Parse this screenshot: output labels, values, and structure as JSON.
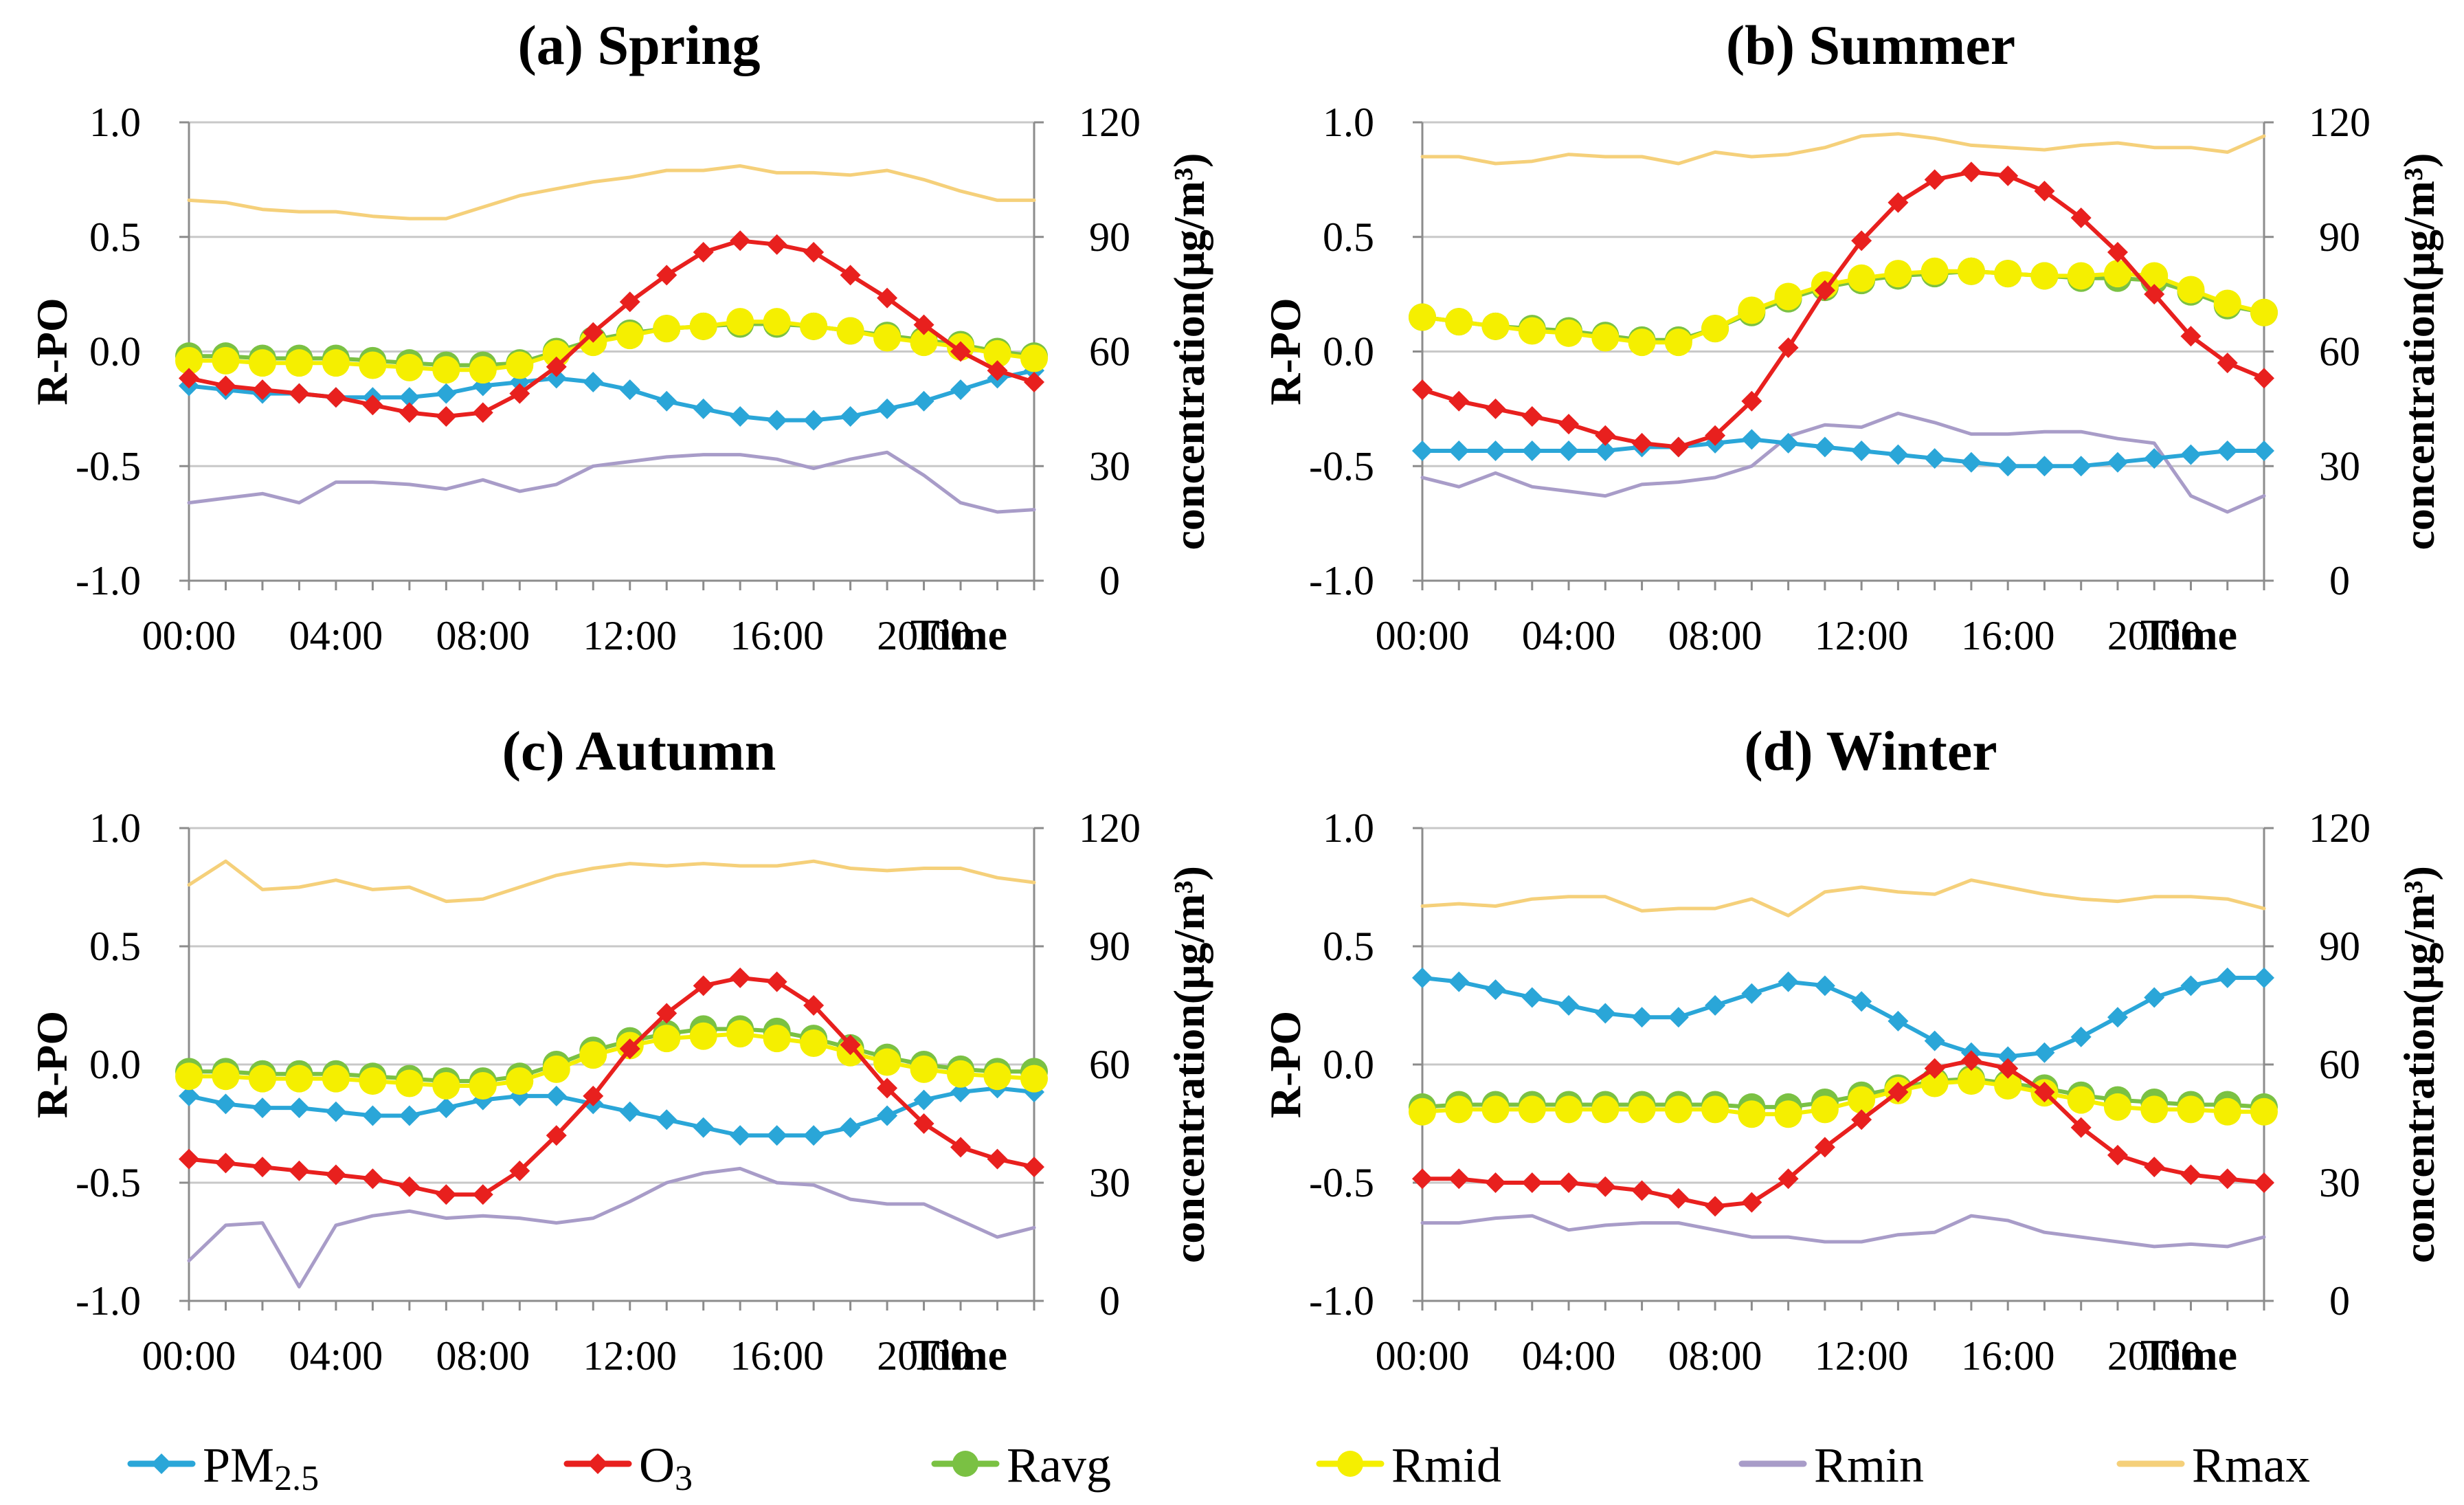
{
  "chart_data": [
    {
      "type": "line",
      "title": "(a) Spring",
      "xlabel": "Time",
      "ylabel": "R-PO",
      "y2label": "concentration(μg/m³)",
      "x_ticks": [
        "00:00",
        "04:00",
        "08:00",
        "12:00",
        "16:00",
        "20:00"
      ],
      "y_ticks": [
        "1.0",
        "0.5",
        "0.0",
        "-0.5",
        "-1.0"
      ],
      "y2_ticks": [
        "120",
        "90",
        "60",
        "30",
        "0"
      ],
      "ylim": [
        -1.0,
        1.0
      ],
      "y2lim": [
        0,
        120
      ],
      "grid": true,
      "x": [
        0,
        1,
        2,
        3,
        4,
        5,
        6,
        7,
        8,
        9,
        10,
        11,
        12,
        13,
        14,
        15,
        16,
        17,
        18,
        19,
        20,
        21,
        22,
        23
      ],
      "series": [
        {
          "name": "PM2.5",
          "axis": "right",
          "color": "#2aa6d8",
          "marker": "diamond",
          "values": [
            51,
            50,
            49,
            49,
            48,
            48,
            48,
            49,
            51,
            52,
            53,
            52,
            50,
            47,
            45,
            43,
            42,
            42,
            43,
            45,
            47,
            50,
            53,
            55
          ]
        },
        {
          "name": "O3",
          "axis": "right",
          "color": "#e8201e",
          "marker": "diamond",
          "values": [
            53,
            51,
            50,
            49,
            48,
            46,
            44,
            43,
            44,
            49,
            56,
            65,
            73,
            80,
            86,
            89,
            88,
            86,
            80,
            74,
            67,
            60,
            55,
            52
          ]
        },
        {
          "name": "Ravg",
          "axis": "left",
          "color": "#7ac143",
          "marker": "circle",
          "values": [
            -0.02,
            -0.02,
            -0.03,
            -0.03,
            -0.03,
            -0.04,
            -0.05,
            -0.06,
            -0.06,
            -0.05,
            0.0,
            0.05,
            0.08,
            0.1,
            0.11,
            0.12,
            0.12,
            0.11,
            0.09,
            0.07,
            0.05,
            0.03,
            0.0,
            -0.02
          ]
        },
        {
          "name": "Rmid",
          "axis": "left",
          "color": "#f5ef00",
          "marker": "circle",
          "values": [
            -0.04,
            -0.04,
            -0.05,
            -0.05,
            -0.05,
            -0.06,
            -0.07,
            -0.08,
            -0.08,
            -0.06,
            -0.01,
            0.04,
            0.07,
            0.1,
            0.11,
            0.13,
            0.13,
            0.11,
            0.09,
            0.06,
            0.04,
            0.02,
            -0.01,
            -0.03
          ]
        },
        {
          "name": "Rmin",
          "axis": "left",
          "color": "#a89cc8",
          "marker": "none",
          "values": [
            -0.66,
            -0.64,
            -0.62,
            -0.66,
            -0.57,
            -0.57,
            -0.58,
            -0.6,
            -0.56,
            -0.61,
            -0.58,
            -0.5,
            -0.48,
            -0.46,
            -0.45,
            -0.45,
            -0.47,
            -0.51,
            -0.47,
            -0.44,
            -0.54,
            -0.66,
            -0.7,
            -0.69
          ]
        },
        {
          "name": "Rmax",
          "axis": "left",
          "color": "#f5d07a",
          "marker": "none",
          "values": [
            0.66,
            0.65,
            0.62,
            0.61,
            0.61,
            0.59,
            0.58,
            0.58,
            0.63,
            0.68,
            0.71,
            0.74,
            0.76,
            0.79,
            0.79,
            0.81,
            0.78,
            0.78,
            0.77,
            0.79,
            0.75,
            0.7,
            0.66,
            0.66
          ]
        }
      ]
    },
    {
      "type": "line",
      "title": "(b) Summer",
      "xlabel": "Time",
      "ylabel": "R-PO",
      "y2label": "concentration(μg/m³)",
      "x_ticks": [
        "00:00",
        "04:00",
        "08:00",
        "12:00",
        "16:00",
        "20:00"
      ],
      "y_ticks": [
        "1.0",
        "0.5",
        "0.0",
        "-0.5",
        "-1.0"
      ],
      "y2_ticks": [
        "120",
        "90",
        "60",
        "30",
        "0"
      ],
      "ylim": [
        -1.0,
        1.0
      ],
      "y2lim": [
        0,
        120
      ],
      "grid": true,
      "x": [
        0,
        1,
        2,
        3,
        4,
        5,
        6,
        7,
        8,
        9,
        10,
        11,
        12,
        13,
        14,
        15,
        16,
        17,
        18,
        19,
        20,
        21,
        22,
        23
      ],
      "series": [
        {
          "name": "PM2.5",
          "axis": "right",
          "color": "#2aa6d8",
          "marker": "diamond",
          "values": [
            34,
            34,
            34,
            34,
            34,
            34,
            35,
            35,
            36,
            37,
            36,
            35,
            34,
            33,
            32,
            31,
            30,
            30,
            30,
            31,
            32,
            33,
            34,
            34
          ]
        },
        {
          "name": "O3",
          "axis": "right",
          "color": "#e8201e",
          "marker": "diamond",
          "values": [
            50,
            47,
            45,
            43,
            41,
            38,
            36,
            35,
            38,
            47,
            61,
            76,
            89,
            99,
            105,
            107,
            106,
            102,
            95,
            86,
            75,
            64,
            57,
            53
          ]
        },
        {
          "name": "Ravg",
          "axis": "left",
          "color": "#7ac143",
          "marker": "circle",
          "values": [
            0.15,
            0.13,
            0.11,
            0.1,
            0.09,
            0.07,
            0.05,
            0.05,
            0.1,
            0.17,
            0.23,
            0.28,
            0.31,
            0.33,
            0.34,
            0.35,
            0.34,
            0.33,
            0.32,
            0.32,
            0.31,
            0.26,
            0.2,
            0.17
          ]
        },
        {
          "name": "Rmid",
          "axis": "left",
          "color": "#f5ef00",
          "marker": "circle",
          "values": [
            0.15,
            0.13,
            0.11,
            0.09,
            0.08,
            0.06,
            0.04,
            0.04,
            0.1,
            0.18,
            0.24,
            0.29,
            0.32,
            0.34,
            0.35,
            0.35,
            0.34,
            0.33,
            0.33,
            0.34,
            0.33,
            0.27,
            0.21,
            0.17
          ]
        },
        {
          "name": "Rmin",
          "axis": "left",
          "color": "#a89cc8",
          "marker": "none",
          "values": [
            -0.55,
            -0.59,
            -0.53,
            -0.59,
            -0.61,
            -0.63,
            -0.58,
            -0.57,
            -0.55,
            -0.5,
            -0.37,
            -0.32,
            -0.33,
            -0.27,
            -0.31,
            -0.36,
            -0.36,
            -0.35,
            -0.35,
            -0.38,
            -0.4,
            -0.63,
            -0.7,
            -0.63
          ]
        },
        {
          "name": "Rmax",
          "axis": "left",
          "color": "#f5d07a",
          "marker": "none",
          "values": [
            0.85,
            0.85,
            0.82,
            0.83,
            0.86,
            0.85,
            0.85,
            0.82,
            0.87,
            0.85,
            0.86,
            0.89,
            0.94,
            0.95,
            0.93,
            0.9,
            0.89,
            0.88,
            0.9,
            0.91,
            0.89,
            0.89,
            0.87,
            0.94
          ]
        }
      ]
    },
    {
      "type": "line",
      "title": "(c) Autumn",
      "xlabel": "Time",
      "ylabel": "R-PO",
      "y2label": "concentration(μg/m³)",
      "x_ticks": [
        "00:00",
        "04:00",
        "08:00",
        "12:00",
        "16:00",
        "20:00"
      ],
      "y_ticks": [
        "1.0",
        "0.5",
        "0.0",
        "-0.5",
        "-1.0"
      ],
      "y2_ticks": [
        "120",
        "90",
        "60",
        "30",
        "0"
      ],
      "ylim": [
        -1.0,
        1.0
      ],
      "y2lim": [
        0,
        120
      ],
      "grid": true,
      "x": [
        0,
        1,
        2,
        3,
        4,
        5,
        6,
        7,
        8,
        9,
        10,
        11,
        12,
        13,
        14,
        15,
        16,
        17,
        18,
        19,
        20,
        21,
        22,
        23
      ],
      "series": [
        {
          "name": "PM2.5",
          "axis": "right",
          "color": "#2aa6d8",
          "marker": "diamond",
          "values": [
            52,
            50,
            49,
            49,
            48,
            47,
            47,
            49,
            51,
            52,
            52,
            50,
            48,
            46,
            44,
            42,
            42,
            42,
            44,
            47,
            51,
            53,
            54,
            53
          ]
        },
        {
          "name": "O3",
          "axis": "right",
          "color": "#e8201e",
          "marker": "diamond",
          "values": [
            36,
            35,
            34,
            33,
            32,
            31,
            29,
            27,
            27,
            33,
            42,
            52,
            64,
            73,
            80,
            82,
            81,
            75,
            65,
            54,
            45,
            39,
            36,
            34
          ]
        },
        {
          "name": "Ravg",
          "axis": "left",
          "color": "#7ac143",
          "marker": "circle",
          "values": [
            -0.03,
            -0.03,
            -0.04,
            -0.04,
            -0.04,
            -0.05,
            -0.06,
            -0.07,
            -0.07,
            -0.05,
            0.0,
            0.06,
            0.1,
            0.13,
            0.15,
            0.15,
            0.14,
            0.11,
            0.07,
            0.03,
            0.0,
            -0.02,
            -0.03,
            -0.03
          ]
        },
        {
          "name": "Rmid",
          "axis": "left",
          "color": "#f5ef00",
          "marker": "circle",
          "values": [
            -0.05,
            -0.05,
            -0.06,
            -0.06,
            -0.06,
            -0.07,
            -0.08,
            -0.09,
            -0.09,
            -0.07,
            -0.02,
            0.04,
            0.08,
            0.11,
            0.12,
            0.13,
            0.11,
            0.09,
            0.05,
            0.01,
            -0.02,
            -0.04,
            -0.05,
            -0.06
          ]
        },
        {
          "name": "Rmin",
          "axis": "left",
          "color": "#a89cc8",
          "marker": "none",
          "values": [
            -0.83,
            -0.68,
            -0.67,
            -0.94,
            -0.68,
            -0.64,
            -0.62,
            -0.65,
            -0.64,
            -0.65,
            -0.67,
            -0.65,
            -0.58,
            -0.5,
            -0.46,
            -0.44,
            -0.5,
            -0.51,
            -0.57,
            -0.59,
            -0.59,
            -0.66,
            -0.73,
            -0.69
          ]
        },
        {
          "name": "Rmax",
          "axis": "left",
          "color": "#f5d07a",
          "marker": "none",
          "values": [
            0.76,
            0.86,
            0.74,
            0.75,
            0.78,
            0.74,
            0.75,
            0.69,
            0.7,
            0.75,
            0.8,
            0.83,
            0.85,
            0.84,
            0.85,
            0.84,
            0.84,
            0.86,
            0.83,
            0.82,
            0.83,
            0.83,
            0.79,
            0.77
          ]
        }
      ]
    },
    {
      "type": "line",
      "title": "(d) Winter",
      "xlabel": "Time",
      "ylabel": "R-PO",
      "y2label": "concentration(μg/m³)",
      "x_ticks": [
        "00:00",
        "04:00",
        "08:00",
        "12:00",
        "16:00",
        "20:00"
      ],
      "y_ticks": [
        "1.0",
        "0.5",
        "0.0",
        "-0.5",
        "-1.0"
      ],
      "y2_ticks": [
        "120",
        "90",
        "60",
        "30",
        "0"
      ],
      "ylim": [
        -1.0,
        1.0
      ],
      "y2lim": [
        0,
        120
      ],
      "grid": true,
      "x": [
        0,
        1,
        2,
        3,
        4,
        5,
        6,
        7,
        8,
        9,
        10,
        11,
        12,
        13,
        14,
        15,
        16,
        17,
        18,
        19,
        20,
        21,
        22,
        23
      ],
      "series": [
        {
          "name": "PM2.5",
          "axis": "right",
          "color": "#2aa6d8",
          "marker": "diamond",
          "values": [
            82,
            81,
            79,
            77,
            75,
            73,
            72,
            72,
            75,
            78,
            81,
            80,
            76,
            71,
            66,
            63,
            62,
            63,
            67,
            72,
            77,
            80,
            82,
            82
          ]
        },
        {
          "name": "O3",
          "axis": "right",
          "color": "#e8201e",
          "marker": "diamond",
          "values": [
            31,
            31,
            30,
            30,
            30,
            29,
            28,
            26,
            24,
            25,
            31,
            39,
            46,
            53,
            59,
            61,
            59,
            53,
            44,
            37,
            34,
            32,
            31,
            30
          ]
        },
        {
          "name": "Ravg",
          "axis": "left",
          "color": "#7ac143",
          "marker": "circle",
          "values": [
            -0.18,
            -0.17,
            -0.17,
            -0.17,
            -0.17,
            -0.17,
            -0.17,
            -0.17,
            -0.17,
            -0.18,
            -0.18,
            -0.16,
            -0.13,
            -0.1,
            -0.07,
            -0.06,
            -0.08,
            -0.1,
            -0.13,
            -0.15,
            -0.16,
            -0.17,
            -0.17,
            -0.18
          ]
        },
        {
          "name": "Rmid",
          "axis": "left",
          "color": "#f5ef00",
          "marker": "circle",
          "values": [
            -0.2,
            -0.19,
            -0.19,
            -0.19,
            -0.19,
            -0.19,
            -0.19,
            -0.19,
            -0.19,
            -0.21,
            -0.21,
            -0.19,
            -0.15,
            -0.11,
            -0.08,
            -0.07,
            -0.09,
            -0.12,
            -0.15,
            -0.18,
            -0.19,
            -0.19,
            -0.2,
            -0.2
          ]
        },
        {
          "name": "Rmin",
          "axis": "left",
          "color": "#a89cc8",
          "marker": "none",
          "values": [
            -0.67,
            -0.67,
            -0.65,
            -0.64,
            -0.7,
            -0.68,
            -0.67,
            -0.67,
            -0.7,
            -0.73,
            -0.73,
            -0.75,
            -0.75,
            -0.72,
            -0.71,
            -0.64,
            -0.66,
            -0.71,
            -0.73,
            -0.75,
            -0.77,
            -0.76,
            -0.77,
            -0.73
          ]
        },
        {
          "name": "Rmax",
          "axis": "left",
          "color": "#f5d07a",
          "marker": "none",
          "values": [
            0.67,
            0.68,
            0.67,
            0.7,
            0.71,
            0.71,
            0.65,
            0.66,
            0.66,
            0.7,
            0.63,
            0.73,
            0.75,
            0.73,
            0.72,
            0.78,
            0.75,
            0.72,
            0.7,
            0.69,
            0.71,
            0.71,
            0.7,
            0.66
          ]
        }
      ]
    }
  ],
  "legend": [
    {
      "key": "PM2.5",
      "label": "PM",
      "sub": "2.5",
      "color": "#2aa6d8",
      "marker": "diamond"
    },
    {
      "key": "O3",
      "label": "O",
      "sub": "3",
      "color": "#e8201e",
      "marker": "diamond"
    },
    {
      "key": "Ravg",
      "label": "Ravg",
      "sub": "",
      "color": "#7ac143",
      "marker": "circle"
    },
    {
      "key": "Rmid",
      "label": "Rmid",
      "sub": "",
      "color": "#f5ef00",
      "marker": "circle"
    },
    {
      "key": "Rmin",
      "label": "Rmin",
      "sub": "",
      "color": "#a89cc8",
      "marker": "none"
    },
    {
      "key": "Rmax",
      "label": "Rmax",
      "sub": "",
      "color": "#f5d07a",
      "marker": "none"
    }
  ]
}
